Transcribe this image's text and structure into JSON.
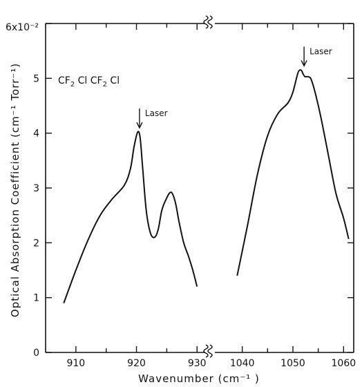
{
  "chart_data": {
    "type": "line",
    "compound_label": {
      "a": "CF",
      "a_sub": "2",
      "b": " Cl CF",
      "b_sub": "2",
      "c": " Cl"
    },
    "xlabel": "Wavenumber   (cm⁻¹ )",
    "ylabel": "Optical Absorption Coefficient (cm⁻¹ Torr⁻¹)",
    "y_exponent_label": "6x10⁻²",
    "ylim": [
      0,
      6
    ],
    "y_ticks": [
      0,
      1,
      2,
      3,
      4,
      5,
      6
    ],
    "y_tick_labels": [
      "0",
      "1",
      "2",
      "3",
      "4",
      "5",
      ""
    ],
    "axis_break": true,
    "segments": [
      {
        "xlim": [
          905,
          931
        ],
        "x_ticks": [
          910,
          915,
          920,
          925,
          930
        ],
        "x_tick_labels": [
          "910",
          "",
          "920",
          "",
          "930"
        ],
        "x": [
          908,
          910,
          912,
          914,
          916,
          918,
          919,
          919.6,
          920.2,
          920.6,
          921,
          921.6,
          922.3,
          923,
          923.6,
          924.2,
          925,
          925.6,
          926,
          926.5,
          927,
          927.8,
          928.6,
          929.3,
          930
        ],
        "y": [
          0.9,
          1.5,
          2.05,
          2.5,
          2.8,
          3.05,
          3.35,
          3.75,
          4.02,
          3.92,
          3.4,
          2.6,
          2.18,
          2.1,
          2.25,
          2.6,
          2.82,
          2.92,
          2.88,
          2.7,
          2.4,
          2.0,
          1.75,
          1.5,
          1.2
        ]
      },
      {
        "xlim": [
          1035,
          1062
        ],
        "x_ticks": [
          1040,
          1045,
          1050,
          1055,
          1060
        ],
        "x_tick_labels": [
          "1040",
          "",
          "1050",
          "",
          "1060"
        ],
        "x": [
          1039,
          1041,
          1043,
          1045,
          1047,
          1049,
          1050,
          1051,
          1051.6,
          1052,
          1052.4,
          1053,
          1053.6,
          1054.5,
          1055.5,
          1057,
          1058.5,
          1060,
          1061
        ],
        "y": [
          1.4,
          2.3,
          3.25,
          3.95,
          4.35,
          4.55,
          4.75,
          5.1,
          5.15,
          5.08,
          5.03,
          5.03,
          4.98,
          4.7,
          4.3,
          3.6,
          2.9,
          2.45,
          2.07
        ]
      }
    ],
    "annotations": [
      {
        "text": "Laser",
        "x": 920.5,
        "y": 4.02,
        "segment": 0
      },
      {
        "text": "Laser",
        "x": 1052.2,
        "y": 5.15,
        "segment": 1
      }
    ]
  }
}
